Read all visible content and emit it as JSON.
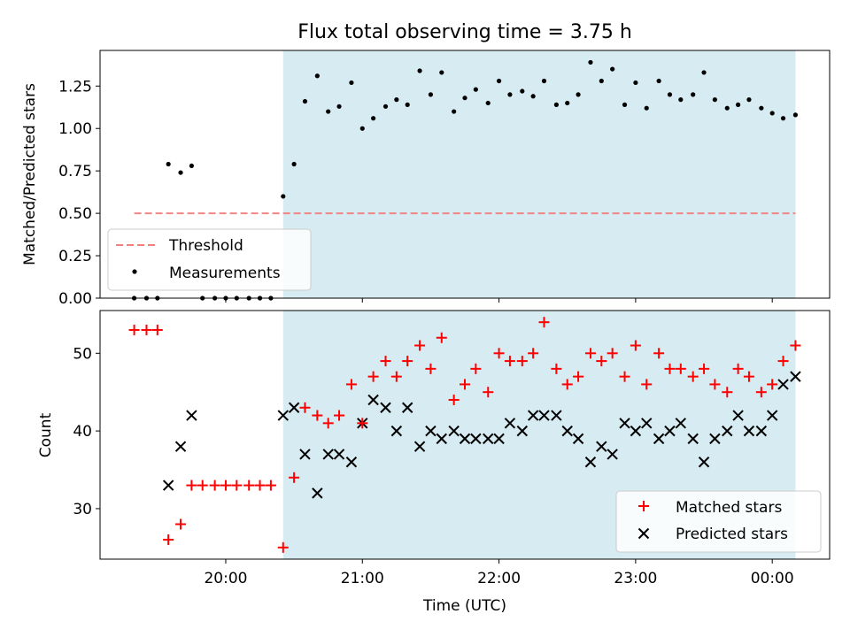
{
  "chart_data": [
    {
      "type": "scatter",
      "title": "Flux total observing time = 3.75 h",
      "xlabel": "",
      "ylabel": "Matched/Predicted stars",
      "ylim": [
        0,
        1.46
      ],
      "yticks": [
        0.0,
        0.25,
        0.5,
        0.75,
        1.0,
        1.25
      ],
      "ytick_labels": [
        "0.00",
        "0.25",
        "0.50",
        "0.75",
        "1.00",
        "1.25"
      ],
      "observing_window_hours": [
        20.42,
        24.17
      ],
      "threshold": {
        "label": "Threshold",
        "value": 0.5,
        "x_range": [
          19.33,
          24.17
        ],
        "color": "#f08080"
      },
      "legend": {
        "placement": "lower-left",
        "entries": [
          "Threshold",
          "Measurements"
        ]
      },
      "series": [
        {
          "name": "Measurements",
          "color": "#000000",
          "x": [
            19.33,
            19.42,
            19.5,
            19.58,
            19.67,
            19.75,
            19.83,
            19.92,
            20.0,
            20.08,
            20.17,
            20.25,
            20.33,
            20.42,
            20.5,
            20.58,
            20.67,
            20.75,
            20.83,
            20.92,
            21.0,
            21.08,
            21.17,
            21.25,
            21.33,
            21.42,
            21.5,
            21.58,
            21.67,
            21.75,
            21.83,
            21.92,
            22.0,
            22.08,
            22.17,
            22.25,
            22.33,
            22.42,
            22.5,
            22.58,
            22.67,
            22.75,
            22.83,
            22.92,
            23.0,
            23.08,
            23.17,
            23.25,
            23.33,
            23.42,
            23.5,
            23.58,
            23.67,
            23.75,
            23.83,
            23.92,
            24.0,
            24.08,
            24.17
          ],
          "y": [
            0,
            0,
            0,
            0.79,
            0.74,
            0.78,
            0,
            0,
            0,
            0,
            0,
            0,
            0,
            0.6,
            0.79,
            1.16,
            1.31,
            1.1,
            1.13,
            1.27,
            1.0,
            1.06,
            1.13,
            1.17,
            1.14,
            1.34,
            1.2,
            1.33,
            1.1,
            1.18,
            1.23,
            1.15,
            1.28,
            1.2,
            1.22,
            1.19,
            1.28,
            1.14,
            1.15,
            1.2,
            1.39,
            1.28,
            1.35,
            1.14,
            1.27,
            1.12,
            1.28,
            1.2,
            1.17,
            1.2,
            1.33,
            1.17,
            1.12,
            1.14,
            1.17,
            1.12,
            1.09,
            1.06,
            1.08
          ]
        }
      ]
    },
    {
      "type": "scatter",
      "title": "",
      "xlabel": "Time (UTC)",
      "ylabel": "Count",
      "ylim": [
        23.5,
        55.5
      ],
      "yticks": [
        30,
        40,
        50
      ],
      "ytick_labels": [
        "30",
        "40",
        "50"
      ],
      "xlim_hours": [
        19.08,
        24.42
      ],
      "xticks_hours": [
        20,
        21,
        22,
        23,
        24
      ],
      "xtick_labels": [
        "20:00",
        "21:00",
        "22:00",
        "23:00",
        "00:00"
      ],
      "legend": {
        "placement": "lower-right",
        "entries": [
          "Matched stars",
          "Predicted stars"
        ]
      },
      "series": [
        {
          "name": "Matched stars",
          "marker": "+",
          "color": "#ff0000",
          "x": [
            19.33,
            19.42,
            19.5,
            19.58,
            19.67,
            19.75,
            19.83,
            19.92,
            20.0,
            20.08,
            20.17,
            20.25,
            20.33,
            20.42,
            20.5,
            20.58,
            20.67,
            20.75,
            20.83,
            20.92,
            21.0,
            21.08,
            21.17,
            21.25,
            21.33,
            21.42,
            21.5,
            21.58,
            21.67,
            21.75,
            21.83,
            21.92,
            22.0,
            22.08,
            22.17,
            22.25,
            22.33,
            22.42,
            22.5,
            22.58,
            22.67,
            22.75,
            22.83,
            22.92,
            23.0,
            23.08,
            23.17,
            23.25,
            23.33,
            23.42,
            23.5,
            23.58,
            23.67,
            23.75,
            23.83,
            23.92,
            24.0,
            24.08,
            24.17
          ],
          "y": [
            53,
            53,
            53,
            26,
            28,
            33,
            33,
            33,
            33,
            33,
            33,
            33,
            33,
            25,
            34,
            43,
            42,
            41,
            42,
            46,
            41,
            47,
            49,
            47,
            49,
            51,
            48,
            52,
            44,
            46,
            48,
            45,
            50,
            49,
            49,
            50,
            54,
            48,
            46,
            47,
            50,
            49,
            50,
            47,
            51,
            46,
            50,
            48,
            48,
            47,
            48,
            46,
            45,
            48,
            47,
            45,
            46,
            49,
            51
          ]
        },
        {
          "name": "Predicted stars",
          "marker": "x",
          "color": "#000000",
          "x": [
            19.58,
            19.67,
            19.75,
            20.42,
            20.5,
            20.58,
            20.67,
            20.75,
            20.83,
            20.92,
            21.0,
            21.08,
            21.17,
            21.25,
            21.33,
            21.42,
            21.5,
            21.58,
            21.67,
            21.75,
            21.83,
            21.92,
            22.0,
            22.08,
            22.17,
            22.25,
            22.33,
            22.42,
            22.5,
            22.58,
            22.67,
            22.75,
            22.83,
            22.92,
            23.0,
            23.08,
            23.17,
            23.25,
            23.33,
            23.42,
            23.5,
            23.58,
            23.67,
            23.75,
            23.83,
            23.92,
            24.0,
            24.08,
            24.17
          ],
          "y": [
            33,
            38,
            42,
            42,
            43,
            37,
            32,
            37,
            37,
            36,
            41,
            44,
            43,
            40,
            43,
            38,
            40,
            39,
            40,
            39,
            39,
            39,
            39,
            41,
            40,
            42,
            42,
            42,
            40,
            39,
            36,
            38,
            37,
            41,
            40,
            41,
            39,
            40,
            41,
            39,
            36,
            39,
            40,
            42,
            40,
            40,
            42,
            46,
            47
          ]
        }
      ]
    }
  ]
}
